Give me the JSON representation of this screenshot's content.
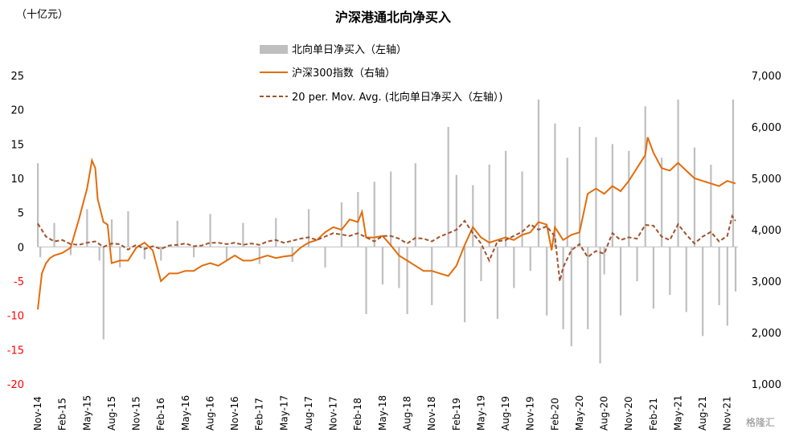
{
  "chart_data": {
    "type": "bar+line",
    "title": "沪深港通北向净买入",
    "left_axis_unit": "（十亿元）",
    "left_axis": {
      "ylim": [
        -20,
        25
      ],
      "ticks": [
        {
          "label": "25",
          "value": 25,
          "color": "#000000"
        },
        {
          "label": "20",
          "value": 20,
          "color": "#000000"
        },
        {
          "label": "15",
          "value": 15,
          "color": "#000000"
        },
        {
          "label": "10",
          "value": 10,
          "color": "#000000"
        },
        {
          "label": "5",
          "value": 5,
          "color": "#000000"
        },
        {
          "label": "0",
          "value": 0,
          "color": "#000000"
        },
        {
          "label": "-5",
          "value": -5,
          "color": "#ff0000"
        },
        {
          "label": "-10",
          "value": -10,
          "color": "#ff0000"
        },
        {
          "label": "-15",
          "value": -15,
          "color": "#ff0000"
        },
        {
          "label": "-20",
          "value": -20,
          "color": "#ff0000"
        }
      ]
    },
    "right_axis": {
      "ylim": [
        1000,
        7000
      ],
      "ticks": [
        {
          "label": "7,000",
          "value": 7000
        },
        {
          "label": "6,000",
          "value": 6000
        },
        {
          "label": "5,000",
          "value": 5000
        },
        {
          "label": "4,000",
          "value": 4000
        },
        {
          "label": "3,000",
          "value": 3000
        },
        {
          "label": "2,000",
          "value": 2000
        },
        {
          "label": "1,000",
          "value": 1000
        }
      ]
    },
    "x_ticks": [
      "Nov-14",
      "Feb-15",
      "May-15",
      "Aug-15",
      "Nov-15",
      "Feb-16",
      "May-16",
      "Aug-16",
      "Nov-16",
      "Feb-17",
      "May-17",
      "Aug-17",
      "Nov-17",
      "Feb-18",
      "May-18",
      "Aug-18",
      "Nov-18",
      "Feb-19",
      "May-19",
      "Aug-19",
      "Nov-19",
      "Feb-20",
      "May-20",
      "Aug-20",
      "Nov-20",
      "Feb-21",
      "May-21",
      "Aug-21",
      "Nov-21"
    ],
    "x_months": [
      0,
      3,
      6,
      9,
      12,
      15,
      18,
      21,
      24,
      27,
      30,
      33,
      36,
      39,
      42,
      45,
      48,
      51,
      54,
      57,
      60,
      63,
      66,
      69,
      72,
      75,
      78,
      81,
      84
    ],
    "x_range_months": [
      0,
      85.3
    ],
    "legend": [
      {
        "label": "北向单日净买入（左轴）",
        "kind": "bar",
        "color": "#bfbfbf"
      },
      {
        "label": "沪深300指数（右轴）",
        "kind": "line",
        "color": "#e36c0a"
      },
      {
        "label": "20 per. Mov. Avg. (北向单日净买入（左轴）)",
        "kind": "dashed",
        "color": "#a0522d"
      }
    ],
    "series": [
      {
        "name": "沪深300指数（右轴）",
        "axis": "right",
        "color": "#e36c0a",
        "points": [
          [
            0,
            2450
          ],
          [
            0.5,
            3150
          ],
          [
            1,
            3350
          ],
          [
            1.5,
            3450
          ],
          [
            2,
            3500
          ],
          [
            3,
            3550
          ],
          [
            4,
            3650
          ],
          [
            5,
            4200
          ],
          [
            6,
            4800
          ],
          [
            6.6,
            5350
          ],
          [
            7,
            5200
          ],
          [
            7.3,
            4600
          ],
          [
            8,
            4150
          ],
          [
            8.5,
            4100
          ],
          [
            9,
            3350
          ],
          [
            10,
            3400
          ],
          [
            11,
            3400
          ],
          [
            12,
            3650
          ],
          [
            13,
            3750
          ],
          [
            14,
            3600
          ],
          [
            15,
            3000
          ],
          [
            16,
            3150
          ],
          [
            17,
            3150
          ],
          [
            18,
            3200
          ],
          [
            19,
            3200
          ],
          [
            20,
            3300
          ],
          [
            21,
            3350
          ],
          [
            22,
            3300
          ],
          [
            23,
            3400
          ],
          [
            24,
            3500
          ],
          [
            25,
            3400
          ],
          [
            26,
            3400
          ],
          [
            27,
            3450
          ],
          [
            28,
            3500
          ],
          [
            29,
            3450
          ],
          [
            30,
            3480
          ],
          [
            31,
            3500
          ],
          [
            32,
            3650
          ],
          [
            33,
            3750
          ],
          [
            34,
            3800
          ],
          [
            35,
            3950
          ],
          [
            36,
            4050
          ],
          [
            37,
            4000
          ],
          [
            38,
            4200
          ],
          [
            39,
            4150
          ],
          [
            39.5,
            4350
          ],
          [
            40,
            3850
          ],
          [
            41,
            3850
          ],
          [
            42,
            3880
          ],
          [
            43,
            3700
          ],
          [
            44,
            3500
          ],
          [
            45,
            3400
          ],
          [
            46,
            3300
          ],
          [
            47,
            3200
          ],
          [
            48,
            3200
          ],
          [
            49,
            3150
          ],
          [
            50,
            3100
          ],
          [
            51,
            3300
          ],
          [
            52,
            3700
          ],
          [
            53,
            4050
          ],
          [
            54,
            3850
          ],
          [
            55,
            3750
          ],
          [
            56,
            3800
          ],
          [
            57,
            3850
          ],
          [
            58,
            3800
          ],
          [
            59,
            3900
          ],
          [
            60,
            3950
          ],
          [
            61,
            4150
          ],
          [
            62,
            4100
          ],
          [
            62.6,
            3600
          ],
          [
            63,
            4050
          ],
          [
            64,
            3800
          ],
          [
            65,
            3900
          ],
          [
            66,
            3950
          ],
          [
            67,
            4700
          ],
          [
            68,
            4800
          ],
          [
            69,
            4700
          ],
          [
            70,
            4850
          ],
          [
            71,
            4750
          ],
          [
            72,
            4950
          ],
          [
            73,
            5200
          ],
          [
            74,
            5450
          ],
          [
            74.3,
            5800
          ],
          [
            75,
            5500
          ],
          [
            76,
            5200
          ],
          [
            77,
            5150
          ],
          [
            78,
            5300
          ],
          [
            79,
            5150
          ],
          [
            80,
            5000
          ],
          [
            81,
            4950
          ],
          [
            82,
            4900
          ],
          [
            83,
            4850
          ],
          [
            84,
            4950
          ],
          [
            85,
            4900
          ]
        ]
      },
      {
        "name": "20 per. Mov. Avg. (北向单日净买入（左轴）)",
        "axis": "left",
        "color": "#a0522d",
        "points": [
          [
            0,
            3.4
          ],
          [
            1,
            1.5
          ],
          [
            2,
            0.8
          ],
          [
            3,
            1.0
          ],
          [
            4,
            0.4
          ],
          [
            5,
            0.3
          ],
          [
            6,
            0.6
          ],
          [
            7,
            0.8
          ],
          [
            8,
            0.0
          ],
          [
            9,
            0.5
          ],
          [
            10,
            0.4
          ],
          [
            11,
            -0.4
          ],
          [
            12,
            0.3
          ],
          [
            13,
            -0.3
          ],
          [
            14,
            0.1
          ],
          [
            15,
            -0.3
          ],
          [
            16,
            0.2
          ],
          [
            17,
            0.3
          ],
          [
            18,
            0.5
          ],
          [
            19,
            0.1
          ],
          [
            20,
            0.2
          ],
          [
            21,
            0.6
          ],
          [
            22,
            0.6
          ],
          [
            23,
            0.4
          ],
          [
            24,
            0.6
          ],
          [
            25,
            0.3
          ],
          [
            26,
            0.5
          ],
          [
            27,
            0.3
          ],
          [
            28,
            0.8
          ],
          [
            29,
            1.0
          ],
          [
            30,
            0.6
          ],
          [
            31,
            0.9
          ],
          [
            32,
            1.2
          ],
          [
            33,
            1.4
          ],
          [
            34,
            1.0
          ],
          [
            35,
            1.5
          ],
          [
            36,
            2.0
          ],
          [
            37,
            1.8
          ],
          [
            38,
            1.6
          ],
          [
            39,
            2.0
          ],
          [
            40,
            1.4
          ],
          [
            41,
            0.8
          ],
          [
            42,
            1.6
          ],
          [
            43,
            1.6
          ],
          [
            44,
            1.2
          ],
          [
            45,
            0.5
          ],
          [
            46,
            1.3
          ],
          [
            47,
            1.2
          ],
          [
            48,
            0.8
          ],
          [
            49,
            1.5
          ],
          [
            50,
            2.0
          ],
          [
            51,
            2.5
          ],
          [
            52,
            3.8
          ],
          [
            53,
            2.0
          ],
          [
            54,
            0.5
          ],
          [
            55,
            -2.0
          ],
          [
            56,
            0.8
          ],
          [
            57,
            1.0
          ],
          [
            58,
            1.6
          ],
          [
            59,
            2.2
          ],
          [
            60,
            3.3
          ],
          [
            61,
            2.5
          ],
          [
            62,
            3.0
          ],
          [
            63,
            1.5
          ],
          [
            63.6,
            -5.0
          ],
          [
            64,
            -3.0
          ],
          [
            65,
            -0.5
          ],
          [
            66,
            0.4
          ],
          [
            67,
            -1.5
          ],
          [
            68,
            -0.6
          ],
          [
            69,
            -1.0
          ],
          [
            70,
            2.0
          ],
          [
            71,
            1.0
          ],
          [
            72,
            1.4
          ],
          [
            73,
            1.2
          ],
          [
            74,
            3.2
          ],
          [
            75,
            3.1
          ],
          [
            76,
            1.5
          ],
          [
            77,
            1.0
          ],
          [
            78,
            3.3
          ],
          [
            79,
            1.8
          ],
          [
            80,
            0.5
          ],
          [
            81,
            1.5
          ],
          [
            82,
            2.2
          ],
          [
            83,
            0.8
          ],
          [
            84,
            1.6
          ],
          [
            84.6,
            4.5
          ],
          [
            85,
            3.8
          ]
        ]
      },
      {
        "name": "北向单日净买入（左轴）",
        "axis": "left",
        "color": "#bfbfbf",
        "points": [
          [
            0,
            12.2
          ],
          [
            0.3,
            -1.5
          ],
          [
            2,
            3.5
          ],
          [
            4,
            -1.2
          ],
          [
            6,
            5.5
          ],
          [
            7.5,
            -2.0
          ],
          [
            8,
            -13.5
          ],
          [
            9,
            4.0
          ],
          [
            10,
            -3.0
          ],
          [
            11,
            5.2
          ],
          [
            13,
            -1.8
          ],
          [
            15,
            -2.0
          ],
          [
            17,
            3.8
          ],
          [
            19,
            -1.5
          ],
          [
            21,
            4.8
          ],
          [
            23,
            -2.0
          ],
          [
            25,
            3.5
          ],
          [
            27,
            -2.5
          ],
          [
            29,
            4.2
          ],
          [
            31,
            -2.2
          ],
          [
            33,
            5.5
          ],
          [
            35,
            -3.0
          ],
          [
            37,
            6.5
          ],
          [
            39,
            8.0
          ],
          [
            40,
            -9.8
          ],
          [
            41,
            9.5
          ],
          [
            42,
            -5.5
          ],
          [
            43,
            11.0
          ],
          [
            44,
            -6.0
          ],
          [
            45,
            -9.8
          ],
          [
            46,
            12.2
          ],
          [
            48,
            -8.5
          ],
          [
            50,
            17.5
          ],
          [
            51,
            10.5
          ],
          [
            52,
            -11.0
          ],
          [
            53,
            9.0
          ],
          [
            54,
            -5.0
          ],
          [
            55,
            12.0
          ],
          [
            56,
            -10.5
          ],
          [
            57,
            14.0
          ],
          [
            58,
            -6.0
          ],
          [
            59,
            11.0
          ],
          [
            60,
            -3.5
          ],
          [
            61,
            21.5
          ],
          [
            62,
            -10.0
          ],
          [
            63,
            18.0
          ],
          [
            64,
            -12.0
          ],
          [
            64.5,
            13.0
          ],
          [
            65,
            -14.5
          ],
          [
            66,
            17.5
          ],
          [
            67,
            -12.0
          ],
          [
            68,
            16.0
          ],
          [
            68.5,
            -17.0
          ],
          [
            69,
            -4.0
          ],
          [
            70,
            15.0
          ],
          [
            71,
            -10.0
          ],
          [
            72,
            14.0
          ],
          [
            73,
            -5.0
          ],
          [
            74,
            20.5
          ],
          [
            75,
            -9.0
          ],
          [
            76,
            13.0
          ],
          [
            77,
            -7.0
          ],
          [
            78,
            21.5
          ],
          [
            79,
            -9.5
          ],
          [
            80,
            14.5
          ],
          [
            81,
            -13.0
          ],
          [
            82,
            12.0
          ],
          [
            83,
            -8.5
          ],
          [
            84,
            -11.5
          ],
          [
            84.7,
            21.5
          ],
          [
            85,
            -6.5
          ]
        ]
      }
    ]
  },
  "watermark": "格隆汇"
}
